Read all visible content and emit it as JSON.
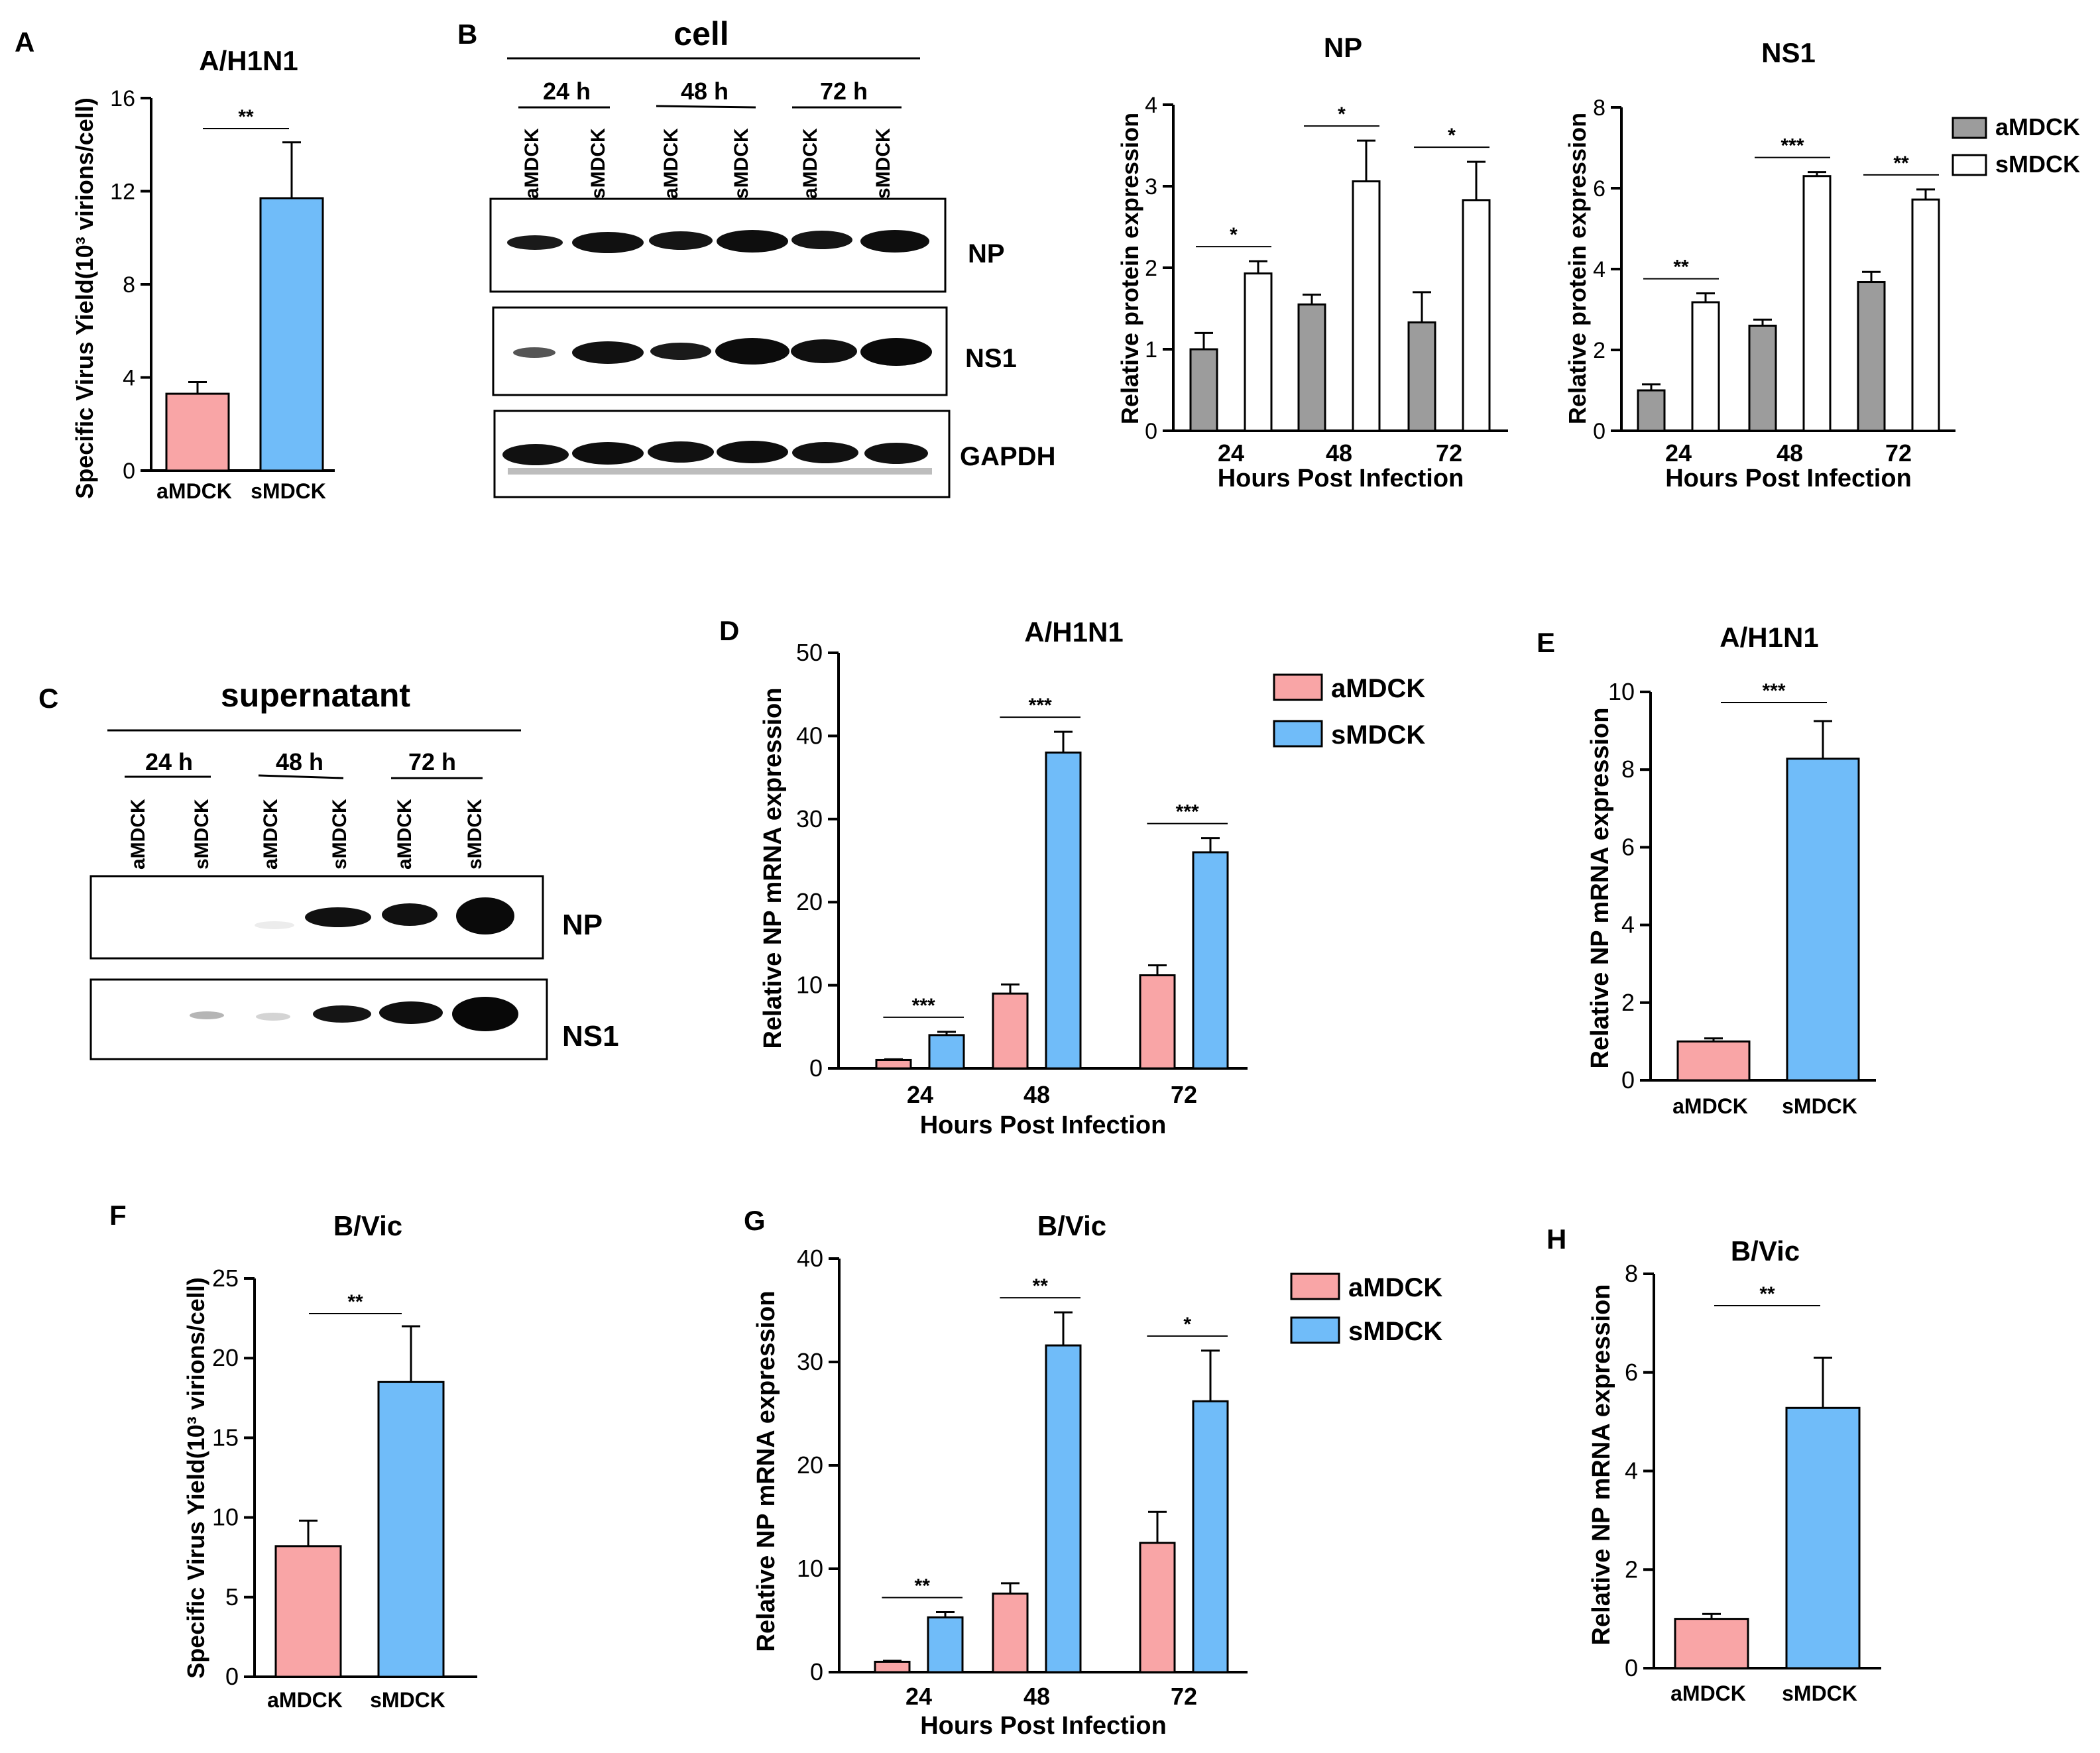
{
  "colors": {
    "pink": "#F9A5A6",
    "blue": "#70BCF9",
    "gray": "#9C9C9C",
    "white": "#FFFFFF",
    "blot": "#111111"
  },
  "labels": {
    "A": "A",
    "B": "B",
    "C": "C",
    "D": "D",
    "E": "E",
    "F": "F",
    "G": "G",
    "H": "H"
  },
  "blots": {
    "cell": {
      "title": "cell",
      "timepoints": [
        "24 h",
        "48 h",
        "72 h"
      ],
      "lanes": [
        "aMDCK",
        "sMDCK",
        "aMDCK",
        "sMDCK",
        "aMDCK",
        "sMDCK"
      ],
      "rows": [
        "NP",
        "NS1",
        "GAPDH"
      ]
    },
    "supernatant": {
      "title": "supernatant",
      "timepoints": [
        "24 h",
        "48 h",
        "72 h"
      ],
      "lanes": [
        "aMDCK",
        "sMDCK",
        "aMDCK",
        "sMDCK",
        "aMDCK",
        "sMDCK"
      ],
      "rows": [
        "NP",
        "NS1"
      ]
    }
  },
  "chart_data": [
    {
      "id": "A",
      "type": "bar",
      "title": "A/H1N1",
      "ylabel": "Specific Virus Yield(10³ virions/cell)",
      "xlabel": "",
      "categories": [
        "aMDCK",
        "sMDCK"
      ],
      "values": [
        3.3,
        11.7
      ],
      "errors": [
        0.5,
        2.4
      ],
      "ylim": [
        0,
        16
      ],
      "yticks": [
        0,
        4,
        8,
        12,
        16
      ],
      "significance": [
        "**"
      ]
    },
    {
      "id": "B-NP",
      "type": "bar",
      "title": "NP",
      "ylabel": "Relative protein expression",
      "xlabel": "Hours Post Infection",
      "categories": [
        "24",
        "48",
        "72"
      ],
      "series": [
        {
          "name": "aMDCK",
          "values": [
            1.0,
            1.55,
            1.33
          ],
          "errors": [
            0.2,
            0.12,
            0.37
          ]
        },
        {
          "name": "sMDCK",
          "values": [
            1.93,
            3.06,
            2.83
          ],
          "errors": [
            0.15,
            0.5,
            0.47
          ]
        }
      ],
      "ylim": [
        0,
        4
      ],
      "yticks": [
        0,
        1,
        2,
        3,
        4
      ],
      "significance": [
        "*",
        "*",
        "*"
      ]
    },
    {
      "id": "B-NS1",
      "type": "bar",
      "title": "NS1",
      "ylabel": "Relative protein expression",
      "xlabel": "Hours Post Infection",
      "categories": [
        "24",
        "48",
        "72"
      ],
      "series": [
        {
          "name": "aMDCK",
          "values": [
            1.0,
            2.6,
            3.68
          ],
          "errors": [
            0.15,
            0.15,
            0.25
          ]
        },
        {
          "name": "sMDCK",
          "values": [
            3.18,
            6.3,
            5.72
          ],
          "errors": [
            0.22,
            0.1,
            0.25
          ]
        }
      ],
      "ylim": [
        0,
        8
      ],
      "yticks": [
        0,
        2,
        4,
        6,
        8
      ],
      "significance": [
        "**",
        "***",
        "**"
      ],
      "legend": [
        "aMDCK",
        "sMDCK"
      ]
    },
    {
      "id": "D",
      "type": "bar",
      "title": "A/H1N1",
      "ylabel": "Relative NP mRNA expression",
      "xlabel": "Hours Post Infection",
      "categories": [
        "24",
        "48",
        "72"
      ],
      "series": [
        {
          "name": "aMDCK",
          "values": [
            1.0,
            9.0,
            11.2
          ],
          "errors": [
            0.1,
            1.1,
            1.2
          ]
        },
        {
          "name": "sMDCK",
          "values": [
            4.0,
            38.0,
            26.0
          ],
          "errors": [
            0.4,
            2.5,
            1.7
          ]
        }
      ],
      "ylim": [
        0,
        50
      ],
      "yticks": [
        0,
        10,
        20,
        30,
        40,
        50
      ],
      "significance": [
        "***",
        "***",
        "***"
      ],
      "legend": [
        "aMDCK",
        "sMDCK"
      ]
    },
    {
      "id": "E",
      "type": "bar",
      "title": "A/H1N1",
      "ylabel": "Relative NP mRNA expression",
      "xlabel": "",
      "categories": [
        "aMDCK",
        "sMDCK"
      ],
      "values": [
        1.0,
        8.28
      ],
      "errors": [
        0.08,
        0.97
      ],
      "ylim": [
        0,
        10
      ],
      "yticks": [
        0,
        2,
        4,
        6,
        8,
        10
      ],
      "significance": [
        "***"
      ]
    },
    {
      "id": "F",
      "type": "bar",
      "title": "B/Vic",
      "ylabel": "Specific Virus Yield(10³ virions/cell)",
      "xlabel": "",
      "categories": [
        "aMDCK",
        "sMDCK"
      ],
      "values": [
        8.2,
        18.5
      ],
      "errors": [
        1.6,
        3.5
      ],
      "ylim": [
        0,
        25
      ],
      "yticks": [
        0,
        5,
        10,
        15,
        20,
        25
      ],
      "significance": [
        "**"
      ]
    },
    {
      "id": "G",
      "type": "bar",
      "title": "B/Vic",
      "ylabel": "Relative NP mRNA expression",
      "xlabel": "Hours Post Infection",
      "categories": [
        "24",
        "48",
        "72"
      ],
      "series": [
        {
          "name": "aMDCK",
          "values": [
            1.0,
            7.6,
            12.5
          ],
          "errors": [
            0.1,
            1.0,
            3.0
          ]
        },
        {
          "name": "sMDCK",
          "values": [
            5.3,
            31.6,
            26.2
          ],
          "errors": [
            0.5,
            3.2,
            4.9
          ]
        }
      ],
      "ylim": [
        0,
        40
      ],
      "yticks": [
        0,
        10,
        20,
        30,
        40
      ],
      "significance": [
        "**",
        "**",
        "*"
      ],
      "legend": [
        "aMDCK",
        "sMDCK"
      ]
    },
    {
      "id": "H",
      "type": "bar",
      "title": "B/Vic",
      "ylabel": "Relative NP mRNA expression",
      "xlabel": "",
      "categories": [
        "aMDCK",
        "sMDCK"
      ],
      "values": [
        1.0,
        5.28
      ],
      "errors": [
        0.1,
        1.02
      ],
      "ylim": [
        0,
        8
      ],
      "yticks": [
        0,
        2,
        4,
        6,
        8
      ],
      "significance": [
        "**"
      ]
    }
  ]
}
